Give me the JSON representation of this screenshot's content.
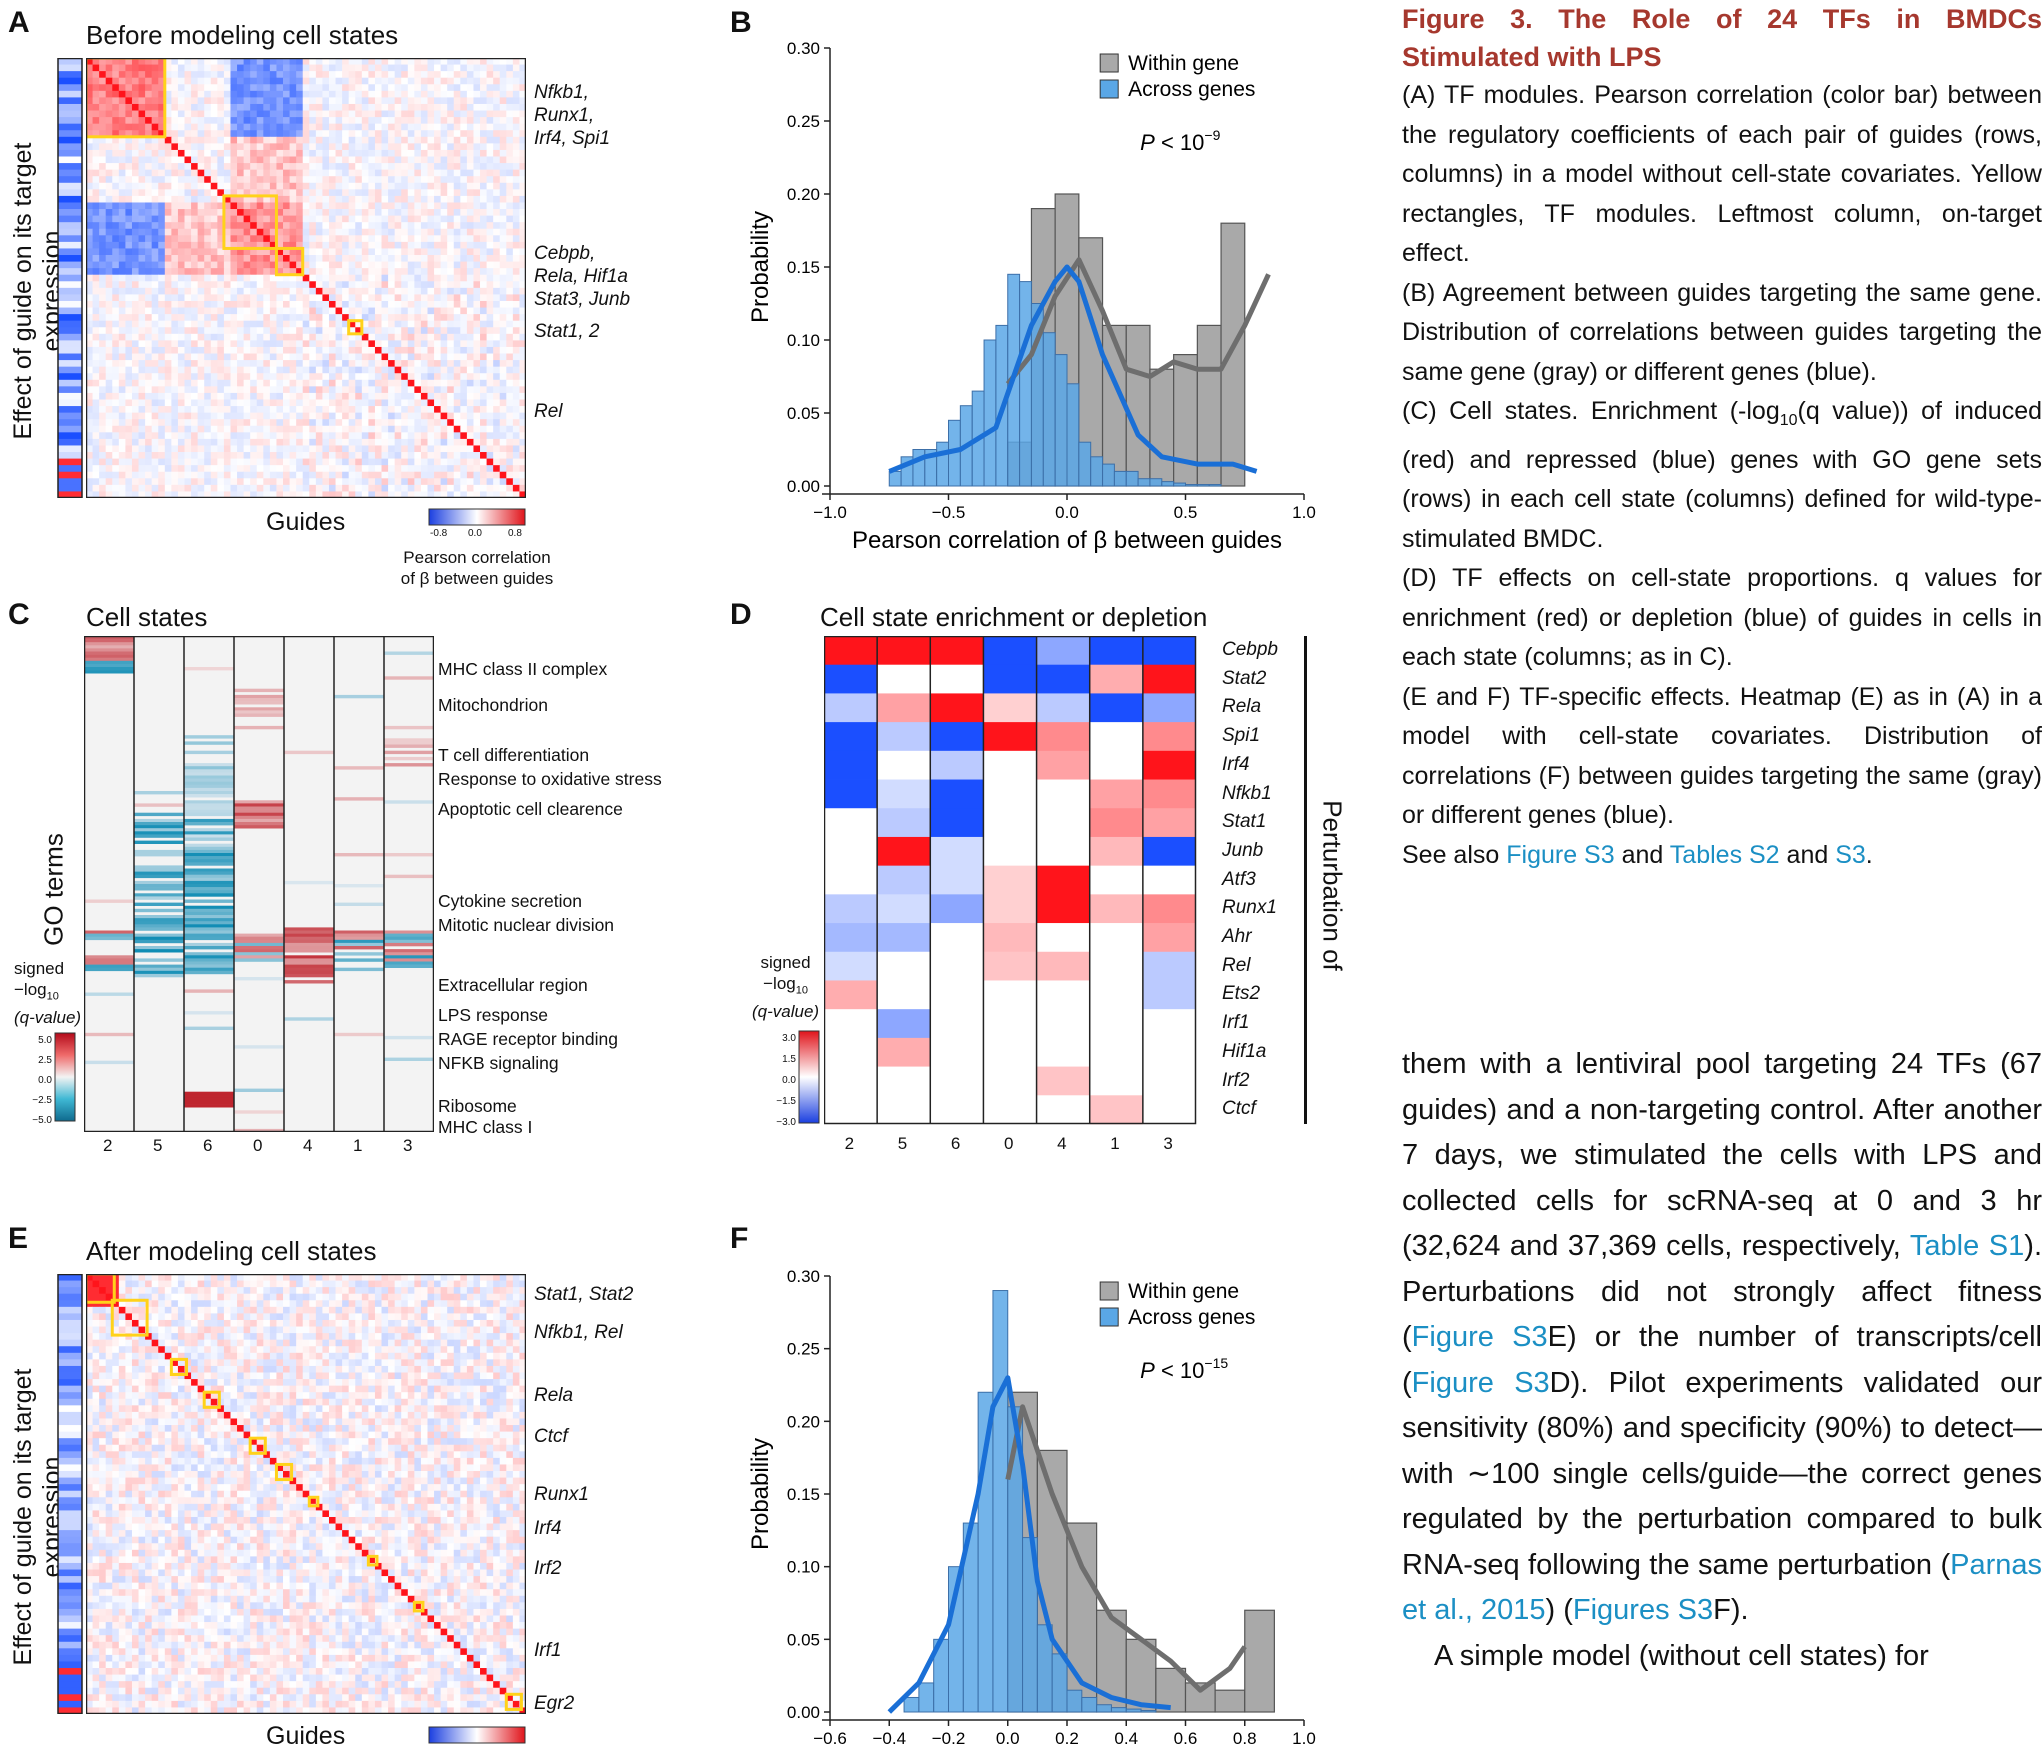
{
  "panels": {
    "A": {
      "label": "A",
      "title": "Before modeling cell states",
      "yaxis": "Effect of guide on its target expression",
      "xaxis": "Guides",
      "modules": [
        "Nfkb1,",
        "Runx1,",
        "Irf4, Spi1",
        "Cebpb,",
        "Rela, Hif1a",
        "Stat3, Junb",
        "Stat1, 2",
        "Rel"
      ],
      "colorbar_label": "Pearson correlation of β between guides",
      "colorbar_ticks": [
        "-0.8",
        "0.0",
        "0.8"
      ],
      "colorbar_label_1": "Pearson correlation",
      "colorbar_label_2": "of β between guides"
    },
    "B": {
      "label": "B"
    },
    "C": {
      "label": "C",
      "title": "Cell states",
      "yaxis": "GO terms",
      "legend_title_1": "signed",
      "legend_title_2": "−log",
      "legend_sub": "10",
      "legend_title_3": "(q-value)",
      "legend_ticks": [
        "5.0",
        "2.5",
        "0.0",
        "−2.5",
        "−5.0"
      ],
      "go_terms": [
        "MHC class II complex",
        "Mitochondrion",
        "T cell differentiation",
        "Response to oxidative stress",
        "Apoptotic cell clearence",
        "Cytokine secretion",
        "Mitotic nuclear division",
        "Extracellular region",
        "LPS response",
        "RAGE receptor binding",
        "NFKB signaling",
        "Ribosome",
        "MHC class I"
      ],
      "states": [
        "2",
        "5",
        "6",
        "0",
        "4",
        "1",
        "3"
      ]
    },
    "D": {
      "label": "D",
      "title": "Cell state enrichment or depletion",
      "side_label": "Perturbation of",
      "genes": [
        "Cebpb",
        "Stat2",
        "Rela",
        "Spi1",
        "Irf4",
        "Nfkb1",
        "Stat1",
        "Junb",
        "Atf3",
        "Runx1",
        "Ahr",
        "Rel",
        "Ets2",
        "Irf1",
        "Hif1a",
        "Irf2",
        "Ctcf"
      ],
      "states": [
        "2",
        "5",
        "6",
        "0",
        "4",
        "1",
        "3"
      ],
      "legend_title_1": "signed",
      "legend_title_2": "−log",
      "legend_sub": "10",
      "legend_title_3": "(q-value)",
      "legend_ticks": [
        "3.0",
        "1.5",
        "0.0",
        "−1.5",
        "−3.0"
      ]
    },
    "E": {
      "label": "E",
      "title": "After modeling cell states",
      "yaxis": "Effect of guide on its target expression",
      "xaxis": "Guides",
      "modules": [
        "Stat1, Stat2",
        "Nfkb1, Rel",
        "Rela",
        "Ctcf",
        "Runx1",
        "Irf4",
        "Irf2",
        "Irf1",
        "Egr2"
      ]
    },
    "F": {
      "label": "F"
    }
  },
  "chart_data": [
    {
      "panel": "B",
      "type": "bar",
      "xlabel": "Pearson correlation of β between guides",
      "ylabel": "Probability",
      "xlim": [
        -1.0,
        1.0
      ],
      "ylim": [
        0,
        0.3
      ],
      "xticks": [
        "−1.0",
        "−0.5",
        "0.0",
        "0.5",
        "1.0"
      ],
      "yticks": [
        "0.00",
        "0.05",
        "0.10",
        "0.15",
        "0.20",
        "0.25",
        "0.30"
      ],
      "annotation": "P < 10",
      "annotation_exp": "−9",
      "legend": [
        "Within gene",
        "Across genes"
      ],
      "series": [
        {
          "name": "Within gene",
          "color": "#a9a9a9",
          "bin_start": -0.25,
          "bin_width": 0.1,
          "values": [
            0.03,
            0.19,
            0.2,
            0.17,
            0.11,
            0.11,
            0.08,
            0.09,
            0.11,
            0.18
          ]
        },
        {
          "name": "Across genes",
          "color": "#5aa7e6",
          "bin_start": -0.75,
          "bin_width": 0.05,
          "values": [
            0.01,
            0.02,
            0.025,
            0.025,
            0.03,
            0.045,
            0.055,
            0.065,
            0.1,
            0.11,
            0.145,
            0.14,
            0.125,
            0.105,
            0.09,
            0.07,
            0.03,
            0.02,
            0.015,
            0.01,
            0.01,
            0.005,
            0.005,
            0.003,
            0.002,
            0.001,
            0.001,
            0.001,
            0.0,
            0.0,
            0.0,
            0.0
          ]
        }
      ],
      "density_within_x": [
        -0.25,
        -0.15,
        -0.05,
        0.05,
        0.15,
        0.25,
        0.35,
        0.45,
        0.55,
        0.65,
        0.75,
        0.85
      ],
      "density_within_y": [
        0.07,
        0.09,
        0.13,
        0.155,
        0.12,
        0.08,
        0.075,
        0.085,
        0.08,
        0.08,
        0.11,
        0.145
      ],
      "density_across_x": [
        -0.75,
        -0.6,
        -0.45,
        -0.3,
        -0.15,
        -0.05,
        0.0,
        0.05,
        0.15,
        0.3,
        0.4,
        0.55,
        0.7,
        0.8
      ],
      "density_across_y": [
        0.01,
        0.02,
        0.025,
        0.04,
        0.11,
        0.14,
        0.15,
        0.14,
        0.09,
        0.035,
        0.02,
        0.015,
        0.015,
        0.01
      ]
    },
    {
      "panel": "F",
      "type": "bar",
      "xlabel": "",
      "ylabel": "Probability",
      "xlim": [
        -0.6,
        1.0
      ],
      "ylim": [
        0,
        0.3
      ],
      "xticks": [
        "−0.6",
        "−0.4",
        "−0.2",
        "0.0",
        "0.2",
        "0.4",
        "0.6",
        "0.8",
        "1.0"
      ],
      "yticks": [
        "0.00",
        "0.05",
        "0.10",
        "0.15",
        "0.20",
        "0.25",
        "0.30"
      ],
      "annotation": "P < 10",
      "annotation_exp": "−15",
      "legend": [
        "Within gene",
        "Across genes"
      ],
      "series": [
        {
          "name": "Within gene",
          "color": "#a9a9a9",
          "bin_start": 0.0,
          "bin_width": 0.1,
          "values": [
            0.22,
            0.18,
            0.13,
            0.07,
            0.05,
            0.03,
            0.02,
            0.015,
            0.07
          ]
        },
        {
          "name": "Across genes",
          "color": "#5aa7e6",
          "bin_start": -0.35,
          "bin_width": 0.05,
          "values": [
            0.01,
            0.02,
            0.05,
            0.1,
            0.13,
            0.22,
            0.29,
            0.21,
            0.12,
            0.06,
            0.04,
            0.015,
            0.01,
            0.005,
            0.003,
            0.002,
            0.001
          ]
        }
      ],
      "density_within_x": [
        0.0,
        0.05,
        0.15,
        0.25,
        0.35,
        0.45,
        0.55,
        0.65,
        0.75,
        0.8
      ],
      "density_within_y": [
        0.16,
        0.21,
        0.15,
        0.1,
        0.065,
        0.05,
        0.035,
        0.015,
        0.03,
        0.045
      ],
      "density_across_x": [
        -0.4,
        -0.3,
        -0.2,
        -0.1,
        -0.05,
        0.0,
        0.05,
        0.1,
        0.15,
        0.25,
        0.35,
        0.45,
        0.55
      ],
      "density_across_y": [
        0.0,
        0.02,
        0.06,
        0.15,
        0.21,
        0.23,
        0.17,
        0.09,
        0.05,
        0.02,
        0.01,
        0.005,
        0.003
      ]
    }
  ],
  "caption": {
    "title": "Figure 3. The Role of 24 TFs in BMDCs Stimulated with LPS",
    "p1": "(A) TF modules. Pearson correlation (color bar) between the regulatory coefficients of each pair of guides (rows, columns) in a model without cell-state covariates. Yellow rectangles, TF modules. Leftmost column, on-target effect.",
    "p2": "(B) Agreement between guides targeting the same gene. Distribution of correlations between guides targeting the same gene (gray) or different genes (blue).",
    "p3_a": "(C) Cell states. Enrichment (-log",
    "p3_sub": "10",
    "p3_b": "(q value)) of induced (red) and repressed (blue) genes with GO gene sets (rows) in each cell state (columns) defined for wild-type-stimulated BMDC.",
    "p4": "(D) TF effects on cell-state proportions. q values for enrichment (red) or depletion (blue) of guides in cells in each state (columns; as in C).",
    "p5": "(E and F) TF-specific effects. Heatmap (E) as in (A) in a model with cell-state covariates. Distribution of correlations (F) between guides targeting the same (gray) or different genes (blue).",
    "p6_a": "See also ",
    "link1": "Figure S3",
    "p6_b": " and ",
    "link2": "Tables S2",
    "p6_c": " and ",
    "link3": "S3",
    "p6_d": "."
  },
  "body": {
    "t1": "them with a lentiviral pool targeting 24 TFs (67 guides) and a non-targeting control. After another 7 days, we stimulated the cells with LPS and collected cells for scRNA-seq at 0 and 3 hr (32,624 and 37,369 cells, respectively, ",
    "l1": "Table S1",
    "t2": "). Perturbations did not strongly affect fitness (",
    "l2": "Figure S3",
    "t3": "E) or the number of transcripts/cell (",
    "l3": "Figure S3",
    "t4": "D). Pilot experiments validated our sensitivity (80%) and specificity (90%) to detect—with ∼100 single cells/guide—the correct genes regulated by the perturbation compared to bulk RNA-seq following the same perturbation (",
    "l4": "Parnas et al., 2015",
    "t5": ") (",
    "l5": "Figures S3",
    "t6": "F).",
    "t7": "A simple model (without cell states) for"
  },
  "colors": {
    "red": "#e0141b",
    "blue": "#1b4fe0",
    "gray": "#a9a9a9",
    "lightblue": "#5aa7e6",
    "curve_gray": "#6e6e6e",
    "curve_blue": "#1a6fd6",
    "yellow": "#ffd21a",
    "caption_title": "#a6382e",
    "link": "#1b8fc4"
  }
}
